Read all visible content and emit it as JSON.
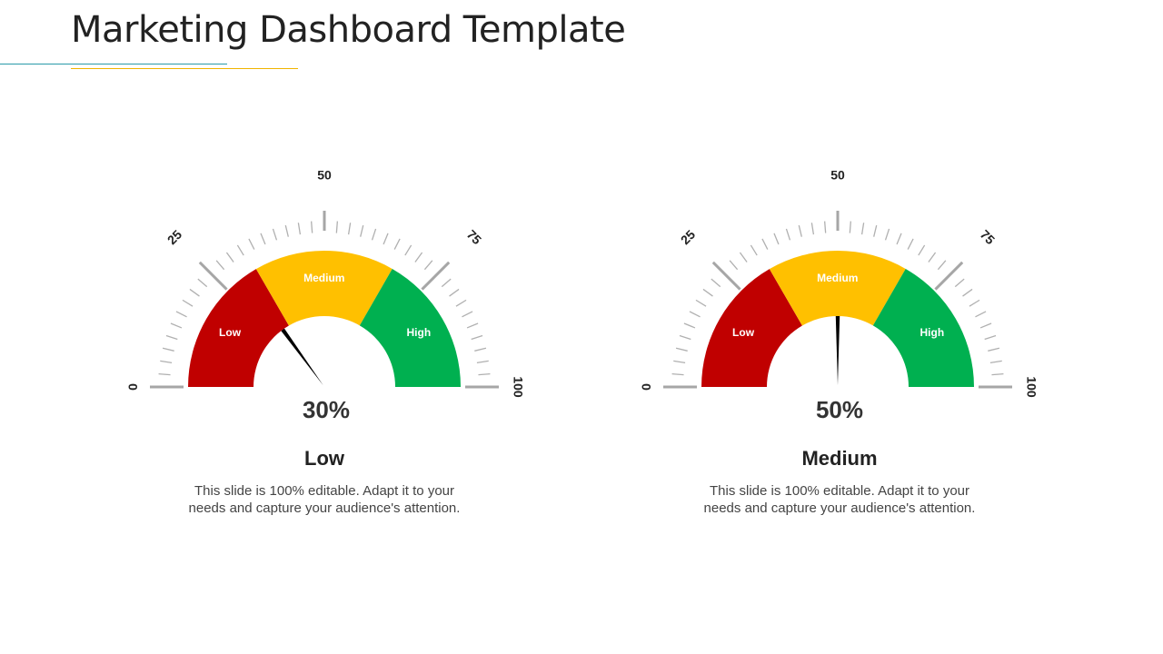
{
  "page": {
    "title": "Marketing Dashboard Template",
    "accent_teal": "#2a9aa8",
    "accent_gold": "#f0b400"
  },
  "chart_data": [
    {
      "type": "gauge",
      "range": [
        0,
        100
      ],
      "major_ticks": [
        0,
        25,
        50,
        75,
        100
      ],
      "tick_labels": [
        "0",
        "25",
        "50",
        "75",
        "100"
      ],
      "bands": [
        {
          "label": "Low",
          "from": 0,
          "to": 33.3,
          "color": "#c00000"
        },
        {
          "label": "Medium",
          "from": 33.3,
          "to": 66.6,
          "color": "#ffc000"
        },
        {
          "label": "High",
          "from": 66.6,
          "to": 100,
          "color": "#00b050"
        }
      ],
      "value": 30,
      "value_label": "30%",
      "heading": "Low",
      "description": "This slide is 100% editable. Adapt it to your needs and capture your audience's attention."
    },
    {
      "type": "gauge",
      "range": [
        0,
        100
      ],
      "major_ticks": [
        0,
        25,
        50,
        75,
        100
      ],
      "tick_labels": [
        "0",
        "25",
        "50",
        "75",
        "100"
      ],
      "bands": [
        {
          "label": "Low",
          "from": 0,
          "to": 33.3,
          "color": "#c00000"
        },
        {
          "label": "Medium",
          "from": 33.3,
          "to": 66.6,
          "color": "#ffc000"
        },
        {
          "label": "High",
          "from": 66.6,
          "to": 100,
          "color": "#00b050"
        }
      ],
      "value": 50,
      "value_label": "50%",
      "heading": "Medium",
      "description": "This slide is 100% editable. Adapt it to your needs and capture your audience's attention."
    }
  ]
}
